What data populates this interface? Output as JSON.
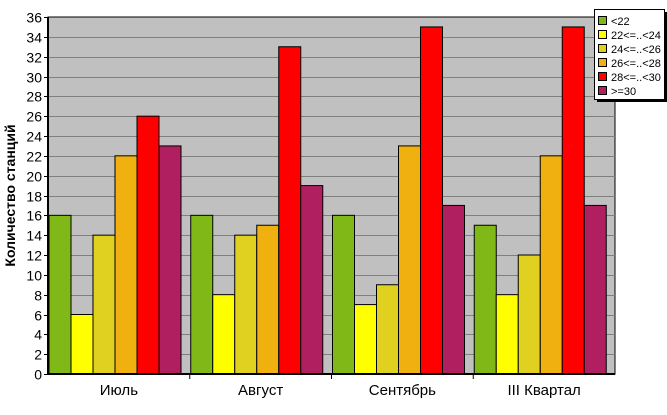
{
  "chart_data": {
    "type": "bar",
    "title": "",
    "xlabel": "",
    "ylabel": "Количество станций",
    "ylim": [
      0,
      36
    ],
    "ytick_step": 2,
    "grid": true,
    "legend_placement": "top-right",
    "plot_background": "#C0C0C0",
    "categories": [
      "Июль",
      "Август",
      "Сентябрь",
      "III Квартал"
    ],
    "series": [
      {
        "name": "<22",
        "color": "#80B818",
        "values": [
          16,
          16,
          16,
          15
        ]
      },
      {
        "name": "22<=..<24",
        "color": "#FFFF00",
        "values": [
          6,
          8,
          7,
          8
        ]
      },
      {
        "name": "24<=..<26",
        "color": "#E0D020",
        "values": [
          14,
          14,
          9,
          12
        ]
      },
      {
        "name": "26<=..<28",
        "color": "#F0B010",
        "values": [
          22,
          15,
          23,
          22
        ]
      },
      {
        "name": "28<=..<30",
        "color": "#FF0000",
        "values": [
          26,
          33,
          35,
          35
        ]
      },
      {
        "name": ">=30",
        "color": "#B02060",
        "values": [
          23,
          19,
          17,
          17
        ]
      }
    ]
  }
}
